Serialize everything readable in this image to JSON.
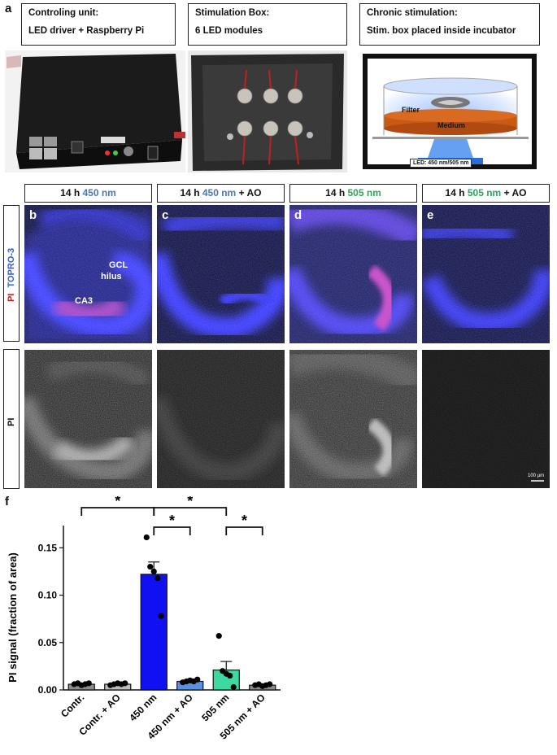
{
  "panel_a": {
    "letter": "a",
    "boxes": [
      {
        "line1": "Controling unit:",
        "line2": "LED driver +  Raspberry Pi"
      },
      {
        "line1": "Stimulation Box:",
        "line2": "6 LED modules"
      },
      {
        "line1": "Chronic stimulation:",
        "line2": "Stim. box placed inside incubator"
      }
    ],
    "schematic": {
      "filter_label": "Filter",
      "medium_label": "Medium",
      "led_label": "LED: 450 nm/505 nm"
    }
  },
  "headers": [
    {
      "prefix": "14 h ",
      "wavelength": "450 nm",
      "suffix": "",
      "color": "#4a78b5"
    },
    {
      "prefix": "14 h ",
      "wavelength": "450 nm",
      "suffix": " + AO",
      "color": "#4a78b5"
    },
    {
      "prefix": "14 h ",
      "wavelength": "505 nm",
      "suffix": "",
      "color": "#2fa35c"
    },
    {
      "prefix": "14 h ",
      "wavelength": "505 nm",
      "suffix": " + AO",
      "color": "#2fa35c"
    }
  ],
  "row_labels": {
    "top_pi": "PI",
    "top_topro": "TOPRO-3",
    "bottom": "PI"
  },
  "panel_letters": [
    "b",
    "c",
    "d",
    "e",
    "f"
  ],
  "annotations": {
    "gcl": "GCL",
    "hilus": "hilus",
    "ca3": "CA3",
    "scalebar": "100 µm"
  },
  "chart_data": {
    "type": "bar",
    "ylabel": "PI signal (fraction of area)",
    "categories": [
      "Contr.",
      "Contr. + AO",
      "450 nm",
      "450 nm + AO",
      "505 nm",
      "505 nm + AO"
    ],
    "values": [
      0.006,
      0.006,
      0.122,
      0.009,
      0.021,
      0.005
    ],
    "sem": [
      0.001,
      0.001,
      0.013,
      0.001,
      0.009,
      0.001
    ],
    "points": [
      [
        0.006,
        0.007,
        0.005,
        0.006,
        0.007
      ],
      [
        0.005,
        0.006,
        0.007,
        0.006,
        0.007
      ],
      [
        0.161,
        0.13,
        0.125,
        0.118,
        0.078
      ],
      [
        0.008,
        0.009,
        0.01,
        0.009,
        0.011
      ],
      [
        0.057,
        0.02,
        0.017,
        0.015,
        0.003
      ],
      [
        0.005,
        0.006,
        0.004,
        0.005,
        0.006
      ]
    ],
    "colors": [
      "#8c8c8c",
      "#bdbdbd",
      "#1010f0",
      "#5b8fe0",
      "#3fd9a0",
      "#8c8c8c"
    ],
    "yticks": [
      "0.00",
      "0.05",
      "0.10",
      "0.15"
    ],
    "ylim": [
      0,
      0.17
    ],
    "significance": [
      {
        "from": 0,
        "to": 2,
        "level": 1,
        "label": "*"
      },
      {
        "from": 2,
        "to": 4,
        "level": 1,
        "label": "*"
      },
      {
        "from": 2,
        "to": 3,
        "level": 2,
        "label": "*"
      },
      {
        "from": 4,
        "to": 5,
        "level": 2,
        "label": "*"
      }
    ]
  }
}
